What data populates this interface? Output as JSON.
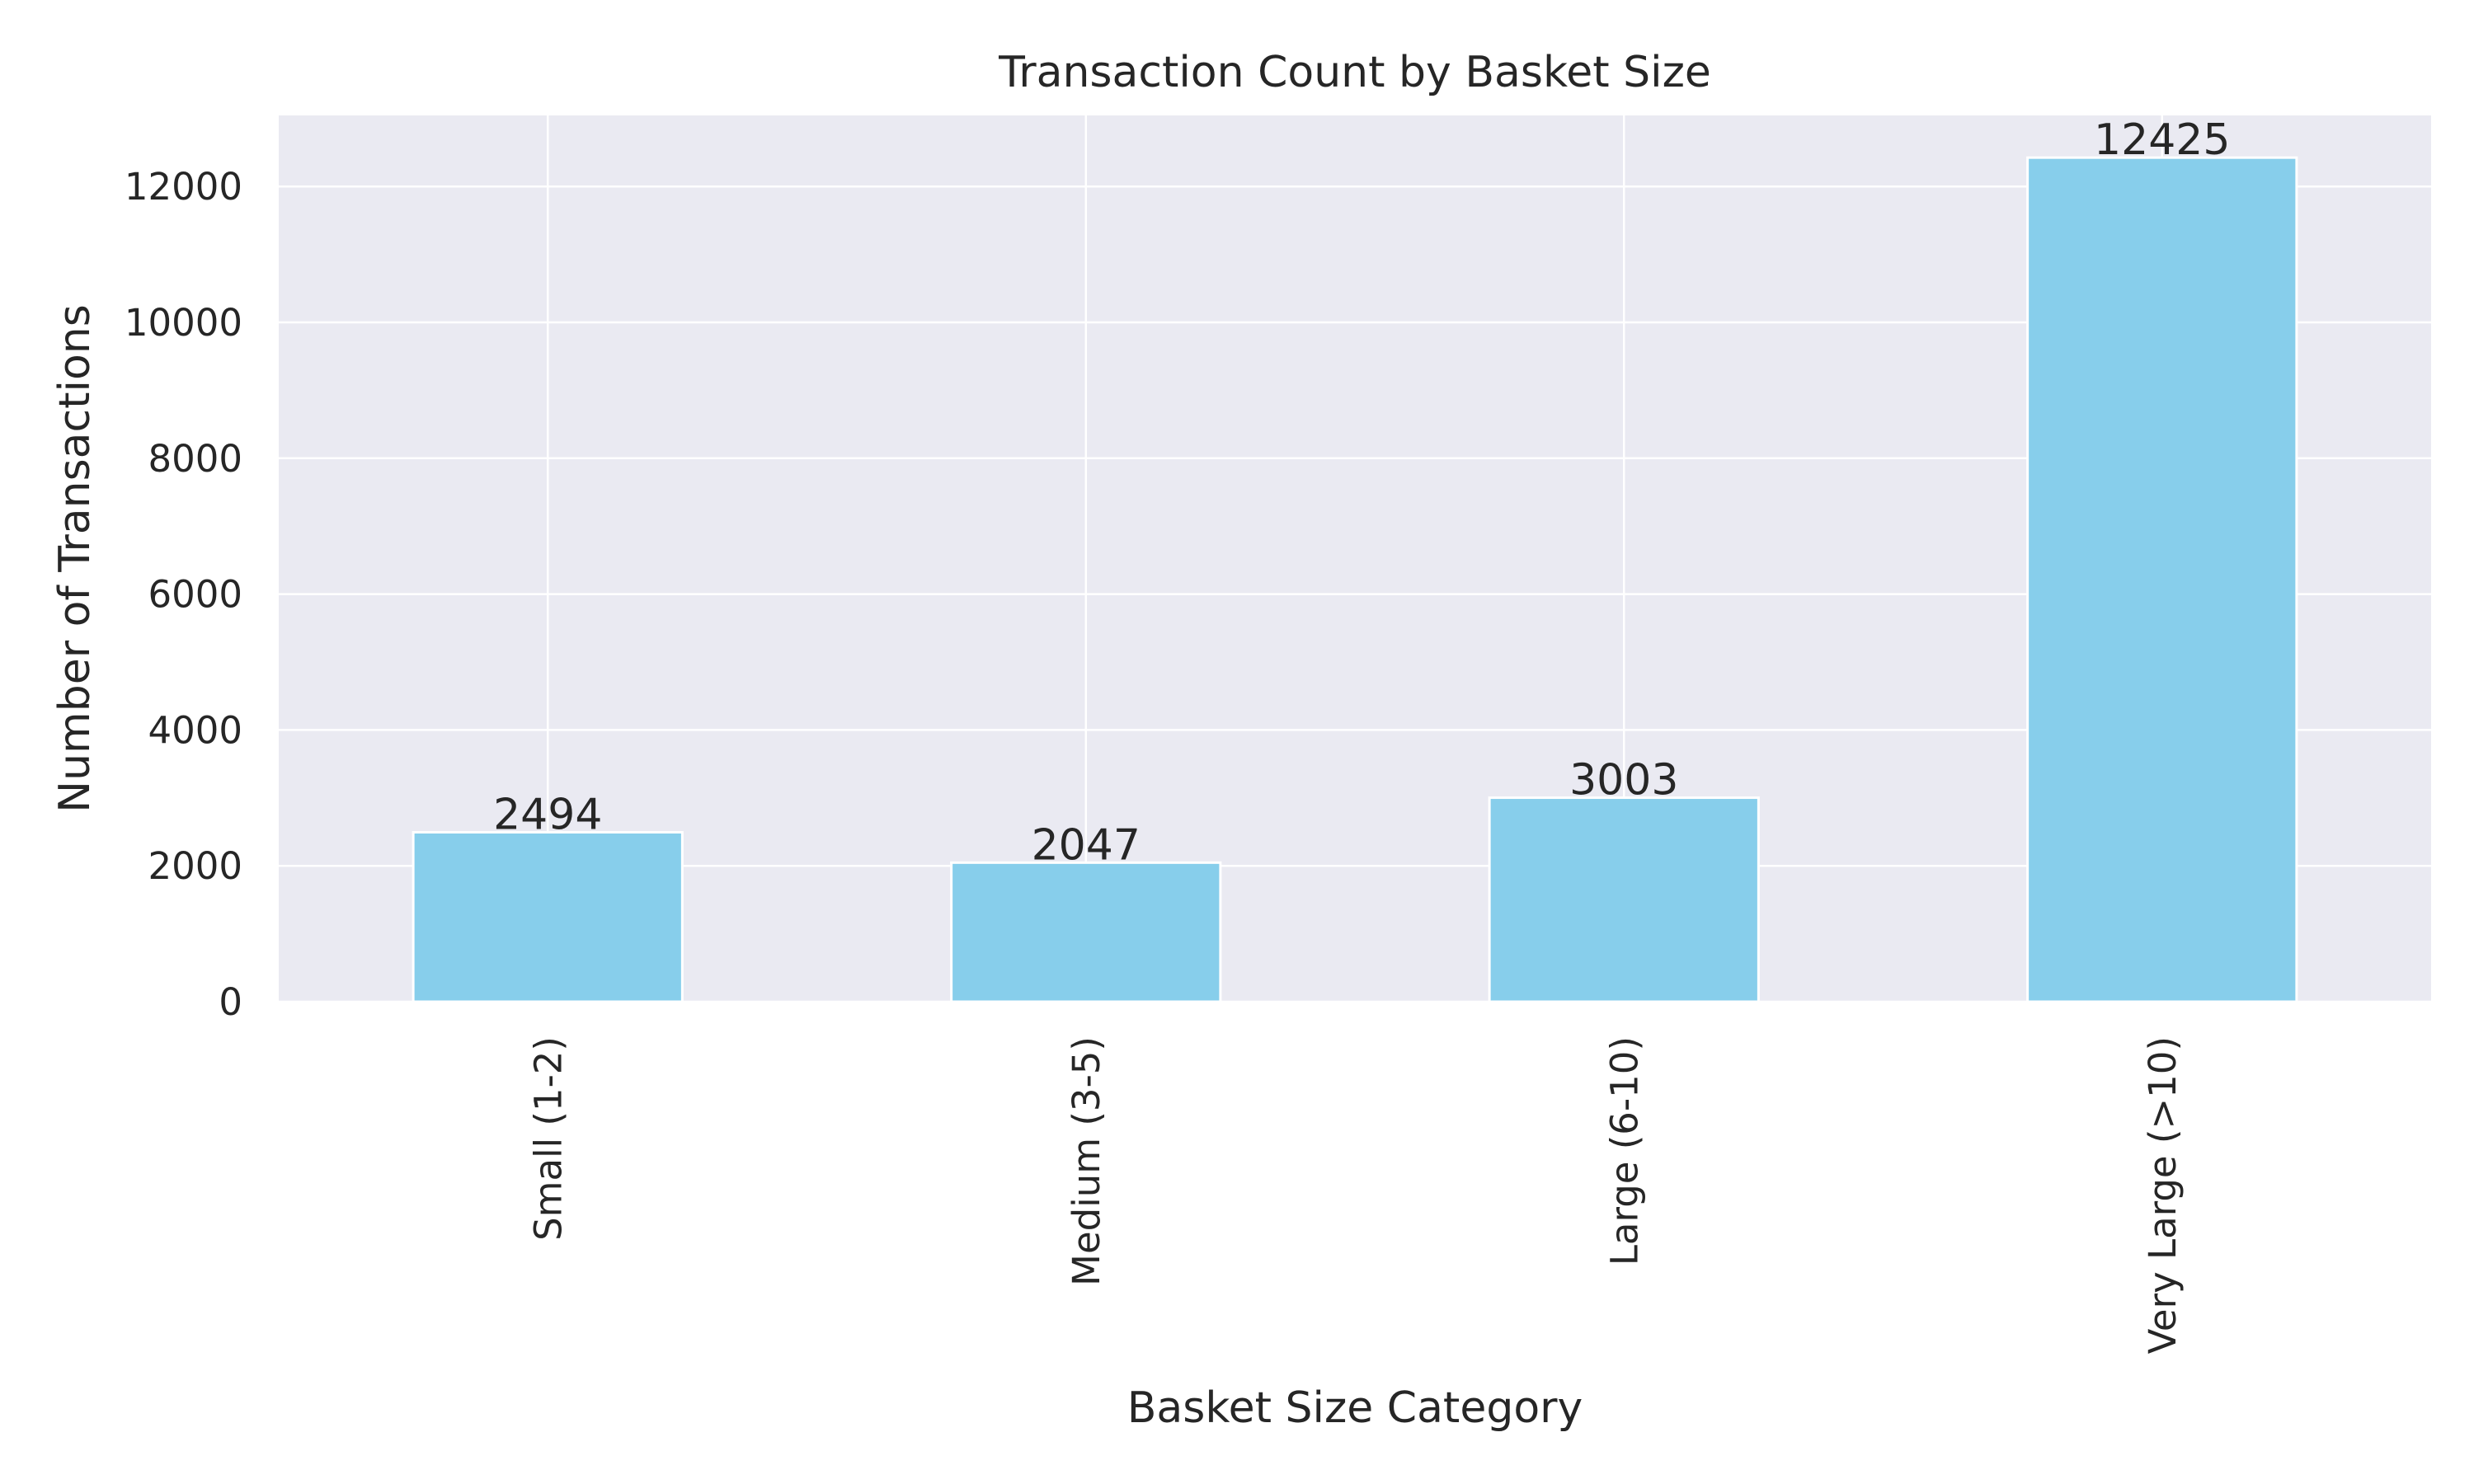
{
  "chart_data": {
    "type": "bar",
    "title": "Transaction Count by Basket Size",
    "xlabel": "Basket Size Category",
    "ylabel": "Number of Transactions",
    "categories": [
      "Small (1-2)",
      "Medium (3-5)",
      "Large (6-10)",
      "Very Large (>10)"
    ],
    "values": [
      2494,
      2047,
      3003,
      12425
    ],
    "data_labels": [
      "2494",
      "2047",
      "3003",
      "12425"
    ],
    "ylim": [
      0,
      13046
    ],
    "yticks": [
      0,
      2000,
      4000,
      6000,
      8000,
      10000,
      12000
    ],
    "ytick_labels": [
      "0",
      "2000",
      "4000",
      "6000",
      "8000",
      "10000",
      "12000"
    ],
    "grid": true,
    "legend": "none",
    "colors": {
      "bar": "#87CEEB",
      "bar_edge": "#ffffff",
      "plot_background": "#EAEAF2",
      "grid": "#ffffff",
      "text": "#262626"
    }
  }
}
